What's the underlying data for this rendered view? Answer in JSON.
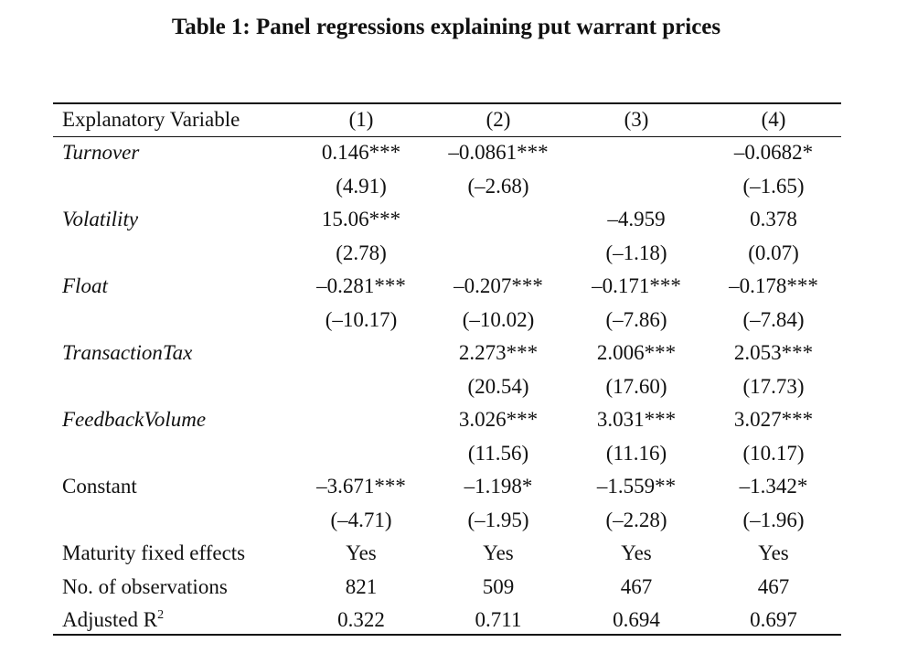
{
  "title": "Table 1: Panel regressions explaining put warrant prices",
  "header": {
    "label": "Explanatory Variable",
    "columns": [
      "(1)",
      "(2)",
      "(3)",
      "(4)"
    ]
  },
  "variables": [
    {
      "name": "Turnover",
      "coef": [
        "0.146***",
        "–0.0861***",
        "",
        "–0.0682*"
      ],
      "tstat": [
        "(4.91)",
        "(–2.68)",
        "",
        "(–1.65)"
      ]
    },
    {
      "name": "Volatility",
      "coef": [
        "15.06***",
        "",
        "–4.959",
        "0.378"
      ],
      "tstat": [
        "(2.78)",
        "",
        "(–1.18)",
        "(0.07)"
      ]
    },
    {
      "name": "Float",
      "coef": [
        "–0.281***",
        "–0.207***",
        "–0.171***",
        "–0.178***"
      ],
      "tstat": [
        "(–10.17)",
        "(–10.02)",
        "(–7.86)",
        "(–7.84)"
      ]
    },
    {
      "name": "TransactionTax",
      "coef": [
        "",
        "2.273***",
        "2.006***",
        "2.053***"
      ],
      "tstat": [
        "",
        "(20.54)",
        "(17.60)",
        "(17.73)"
      ]
    },
    {
      "name": "FeedbackVolume",
      "coef": [
        "",
        "3.026***",
        "3.031***",
        "3.027***"
      ],
      "tstat": [
        "",
        "(11.56)",
        "(11.16)",
        "(10.17)"
      ]
    },
    {
      "name": "Constant",
      "coef": [
        "–3.671***",
        "–1.198*",
        "–1.559**",
        "–1.342*"
      ],
      "tstat": [
        "(–4.71)",
        "(–1.95)",
        "(–2.28)",
        "(–1.96)"
      ]
    }
  ],
  "summary": [
    {
      "label": "Maturity fixed effects",
      "values": [
        "Yes",
        "Yes",
        "Yes",
        "Yes"
      ]
    },
    {
      "label": "No. of observations",
      "values": [
        "821",
        "509",
        "467",
        "467"
      ]
    }
  ],
  "adjusted_r2": {
    "label": "Adjusted R",
    "superscript": "2",
    "values": [
      "0.322",
      "0.711",
      "0.694",
      "0.697"
    ]
  }
}
